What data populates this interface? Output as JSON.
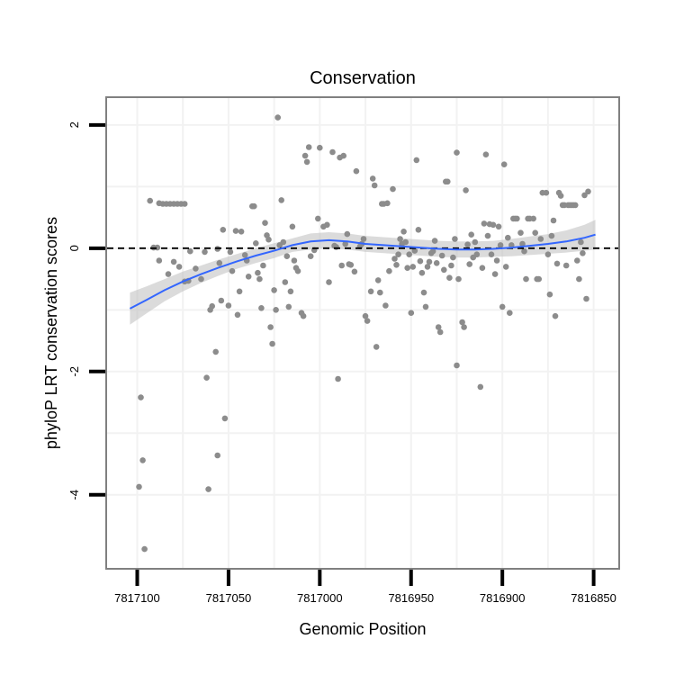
{
  "chart_data": {
    "type": "scatter",
    "title": "Conservation",
    "xlabel": "Genomic Position",
    "ylabel": "phyloP LRT conservation scores",
    "x_reversed": true,
    "xlim": [
      7817117,
      7816836
    ],
    "ylim": [
      -5.2,
      2.45
    ],
    "x_ticks": [
      7817100,
      7817050,
      7817000,
      7816950,
      7816900,
      7816850
    ],
    "x_tick_labels": [
      "7817100",
      "7817050",
      "7817000",
      "7816950",
      "7816900",
      "7816850"
    ],
    "y_ticks": [
      2,
      0,
      -2,
      -4
    ],
    "y_tick_labels": [
      "2",
      "0",
      "-2",
      "-4"
    ],
    "reference_line": {
      "y": 0,
      "style": "dashed",
      "color": "#000000"
    },
    "point_color": "#8c8c8c",
    "smooth_color": "#3366ff",
    "band_color": "#bdbdbd",
    "grid": true,
    "points": [
      [
        7817099,
        -3.87
      ],
      [
        7817098,
        -2.42
      ],
      [
        7817097,
        -3.44
      ],
      [
        7817096,
        -4.88
      ],
      [
        7817093,
        0.77
      ],
      [
        7817091,
        0.01
      ],
      [
        7817089,
        0.01
      ],
      [
        7817088,
        0.73
      ],
      [
        7817086,
        0.72
      ],
      [
        7817084,
        0.72
      ],
      [
        7817082,
        0.72
      ],
      [
        7817080,
        0.72
      ],
      [
        7817078,
        0.72
      ],
      [
        7817076,
        0.72
      ],
      [
        7817074,
        0.72
      ],
      [
        7817088,
        -0.2
      ],
      [
        7817083,
        -0.42
      ],
      [
        7817080,
        -0.22
      ],
      [
        7817077,
        -0.3
      ],
      [
        7817074,
        -0.54
      ],
      [
        7817072,
        -0.53
      ],
      [
        7817071,
        -0.05
      ],
      [
        7817068,
        -0.33
      ],
      [
        7817065,
        -0.5
      ],
      [
        7817063,
        -0.06
      ],
      [
        7817062,
        -2.1
      ],
      [
        7817061,
        -3.91
      ],
      [
        7817060,
        -1.0
      ],
      [
        7817059,
        -0.94
      ],
      [
        7817057,
        -1.68
      ],
      [
        7817056,
        -3.36
      ],
      [
        7817056,
        -0.01
      ],
      [
        7817055,
        -0.24
      ],
      [
        7817054,
        -0.85
      ],
      [
        7817053,
        0.3
      ],
      [
        7817052,
        -2.76
      ],
      [
        7817050,
        -0.93
      ],
      [
        7817049,
        -0.06
      ],
      [
        7817048,
        -0.37
      ],
      [
        7817046,
        0.28
      ],
      [
        7817045,
        -1.08
      ],
      [
        7817044,
        -0.7
      ],
      [
        7817043,
        0.27
      ],
      [
        7817041,
        -0.11
      ],
      [
        7817040,
        -0.2
      ],
      [
        7817039,
        -0.46
      ],
      [
        7817037,
        0.68
      ],
      [
        7817036,
        0.68
      ],
      [
        7817035,
        0.08
      ],
      [
        7817034,
        -0.4
      ],
      [
        7817033,
        -0.5
      ],
      [
        7817032,
        -0.97
      ],
      [
        7817031,
        -0.28
      ],
      [
        7817030,
        0.41
      ],
      [
        7817029,
        0.21
      ],
      [
        7817028,
        0.14
      ],
      [
        7817027,
        -1.28
      ],
      [
        7817026,
        -1.55
      ],
      [
        7817025,
        -0.68
      ],
      [
        7817024,
        -1.0
      ],
      [
        7817023,
        2.12
      ],
      [
        7817022,
        0.05
      ],
      [
        7817021,
        0.78
      ],
      [
        7817020,
        0.1
      ],
      [
        7817019,
        -0.55
      ],
      [
        7817018,
        -0.13
      ],
      [
        7817017,
        -0.95
      ],
      [
        7817016,
        -0.7
      ],
      [
        7817015,
        0.35
      ],
      [
        7817014,
        -0.2
      ],
      [
        7817013,
        -0.32
      ],
      [
        7817012,
        -0.37
      ],
      [
        7817010,
        -1.05
      ],
      [
        7817009,
        -1.1
      ],
      [
        7817008,
        1.5
      ],
      [
        7817007,
        1.4
      ],
      [
        7817006,
        1.64
      ],
      [
        7817005,
        -0.13
      ],
      [
        7817003,
        -0.03
      ],
      [
        7817001,
        0.48
      ],
      [
        7817000,
        1.63
      ],
      [
        7816998,
        0.35
      ],
      [
        7816996,
        0.38
      ],
      [
        7816995,
        -0.55
      ],
      [
        7816993,
        1.56
      ],
      [
        7816992,
        0.04
      ],
      [
        7816991,
        0.02
      ],
      [
        7816990,
        -2.12
      ],
      [
        7816989,
        1.47
      ],
      [
        7816988,
        -0.28
      ],
      [
        7816987,
        1.5
      ],
      [
        7816986,
        0.07
      ],
      [
        7816985,
        0.23
      ],
      [
        7816984,
        -0.26
      ],
      [
        7816983,
        -0.27
      ],
      [
        7816981,
        -0.38
      ],
      [
        7816980,
        1.25
      ],
      [
        7816978,
        0.03
      ],
      [
        7816977,
        0.07
      ],
      [
        7816976,
        0.15
      ],
      [
        7816975,
        -1.1
      ],
      [
        7816974,
        -1.18
      ],
      [
        7816972,
        -0.7
      ],
      [
        7816971,
        1.13
      ],
      [
        7816970,
        1.02
      ],
      [
        7816969,
        -1.6
      ],
      [
        7816968,
        -0.52
      ],
      [
        7816967,
        -0.72
      ],
      [
        7816966,
        0.72
      ],
      [
        7816965,
        0.72
      ],
      [
        7816964,
        -0.93
      ],
      [
        7816963,
        0.73
      ],
      [
        7816962,
        -0.37
      ],
      [
        7816960,
        0.96
      ],
      [
        7816959,
        -0.17
      ],
      [
        7816958,
        -0.27
      ],
      [
        7816957,
        -0.1
      ],
      [
        7816956,
        0.15
      ],
      [
        7816955,
        0.07
      ],
      [
        7816954,
        0.27
      ],
      [
        7816953,
        0.1
      ],
      [
        7816952,
        -0.32
      ],
      [
        7816951,
        -0.1
      ],
      [
        7816950,
        -1.05
      ],
      [
        7816949,
        -0.3
      ],
      [
        7816948,
        -0.04
      ],
      [
        7816947,
        1.43
      ],
      [
        7816946,
        0.3
      ],
      [
        7816945,
        -0.21
      ],
      [
        7816944,
        -0.4
      ],
      [
        7816943,
        -0.72
      ],
      [
        7816942,
        -0.95
      ],
      [
        7816941,
        -0.3
      ],
      [
        7816940,
        -0.22
      ],
      [
        7816939,
        -0.08
      ],
      [
        7816938,
        -0.05
      ],
      [
        7816937,
        0.12
      ],
      [
        7816936,
        -0.24
      ],
      [
        7816935,
        -1.28
      ],
      [
        7816934,
        -1.36
      ],
      [
        7816933,
        -0.12
      ],
      [
        7816932,
        -0.35
      ],
      [
        7816931,
        1.08
      ],
      [
        7816930,
        1.08
      ],
      [
        7816929,
        -0.48
      ],
      [
        7816928,
        -0.28
      ],
      [
        7816927,
        -0.15
      ],
      [
        7816926,
        0.15
      ],
      [
        7816925,
        1.55
      ],
      [
        7816925,
        -1.9
      ],
      [
        7816924,
        -0.5
      ],
      [
        7816922,
        -1.2
      ],
      [
        7816921,
        -1.28
      ],
      [
        7816920,
        0.94
      ],
      [
        7816919,
        0.06
      ],
      [
        7816918,
        -0.26
      ],
      [
        7816917,
        0.22
      ],
      [
        7816916,
        -0.15
      ],
      [
        7816915,
        0.1
      ],
      [
        7816914,
        -0.1
      ],
      [
        7816912,
        -2.25
      ],
      [
        7816911,
        -0.32
      ],
      [
        7816910,
        0.4
      ],
      [
        7816909,
        1.52
      ],
      [
        7816908,
        0.2
      ],
      [
        7816907,
        0.39
      ],
      [
        7816906,
        -0.1
      ],
      [
        7816905,
        0.38
      ],
      [
        7816904,
        -0.42
      ],
      [
        7816903,
        -0.2
      ],
      [
        7816902,
        0.35
      ],
      [
        7816901,
        0.05
      ],
      [
        7816900,
        -0.95
      ],
      [
        7816899,
        1.36
      ],
      [
        7816898,
        -0.3
      ],
      [
        7816897,
        0.17
      ],
      [
        7816896,
        -1.05
      ],
      [
        7816895,
        0.05
      ],
      [
        7816894,
        0.48
      ],
      [
        7816893,
        0.48
      ],
      [
        7816892,
        0.48
      ],
      [
        7816890,
        0.25
      ],
      [
        7816889,
        0.07
      ],
      [
        7816888,
        -0.05
      ],
      [
        7816887,
        -0.5
      ],
      [
        7816886,
        0.48
      ],
      [
        7816885,
        0.48
      ],
      [
        7816883,
        0.48
      ],
      [
        7816882,
        0.25
      ],
      [
        7816881,
        -0.5
      ],
      [
        7816880,
        -0.5
      ],
      [
        7816879,
        0.15
      ],
      [
        7816878,
        0.9
      ],
      [
        7816876,
        0.9
      ],
      [
        7816875,
        -0.1
      ],
      [
        7816874,
        -0.75
      ],
      [
        7816873,
        0.2
      ],
      [
        7816872,
        0.45
      ],
      [
        7816871,
        -1.1
      ],
      [
        7816870,
        -0.25
      ],
      [
        7816869,
        0.9
      ],
      [
        7816868,
        0.85
      ],
      [
        7816867,
        0.7
      ],
      [
        7816866,
        0.7
      ],
      [
        7816865,
        -0.28
      ],
      [
        7816864,
        0.7
      ],
      [
        7816863,
        0.7
      ],
      [
        7816862,
        0.7
      ],
      [
        7816861,
        0.7
      ],
      [
        7816860,
        0.7
      ],
      [
        7816859,
        -0.2
      ],
      [
        7816858,
        -0.5
      ],
      [
        7816857,
        0.1
      ],
      [
        7816856,
        -0.08
      ],
      [
        7816855,
        0.86
      ],
      [
        7816854,
        -0.82
      ],
      [
        7816853,
        0.92
      ]
    ],
    "smooth": {
      "x": [
        7817104,
        7817095,
        7817085,
        7817075,
        7817065,
        7817055,
        7817045,
        7817035,
        7817025,
        7817015,
        7817005,
        7816995,
        7816985,
        7816975,
        7816965,
        7816955,
        7816945,
        7816935,
        7816925,
        7816915,
        7816905,
        7816895,
        7816885,
        7816875,
        7816865,
        7816855,
        7816849
      ],
      "y": [
        -0.98,
        -0.84,
        -0.68,
        -0.54,
        -0.42,
        -0.31,
        -0.21,
        -0.12,
        -0.04,
        0.05,
        0.11,
        0.13,
        0.11,
        0.07,
        0.05,
        0.03,
        0.01,
        -0.01,
        -0.02,
        -0.02,
        -0.01,
        0.01,
        0.04,
        0.07,
        0.11,
        0.17,
        0.22
      ],
      "upper": [
        -0.72,
        -0.62,
        -0.5,
        -0.38,
        -0.28,
        -0.18,
        -0.09,
        0.0,
        0.08,
        0.16,
        0.24,
        0.26,
        0.24,
        0.2,
        0.18,
        0.16,
        0.14,
        0.12,
        0.11,
        0.11,
        0.12,
        0.15,
        0.19,
        0.23,
        0.29,
        0.38,
        0.46
      ],
      "lower": [
        -1.24,
        -1.06,
        -0.86,
        -0.7,
        -0.56,
        -0.44,
        -0.33,
        -0.24,
        -0.16,
        -0.06,
        -0.02,
        0.0,
        -0.02,
        -0.06,
        -0.08,
        -0.1,
        -0.12,
        -0.14,
        -0.15,
        -0.15,
        -0.14,
        -0.13,
        -0.11,
        -0.09,
        -0.07,
        -0.04,
        -0.02
      ]
    }
  }
}
